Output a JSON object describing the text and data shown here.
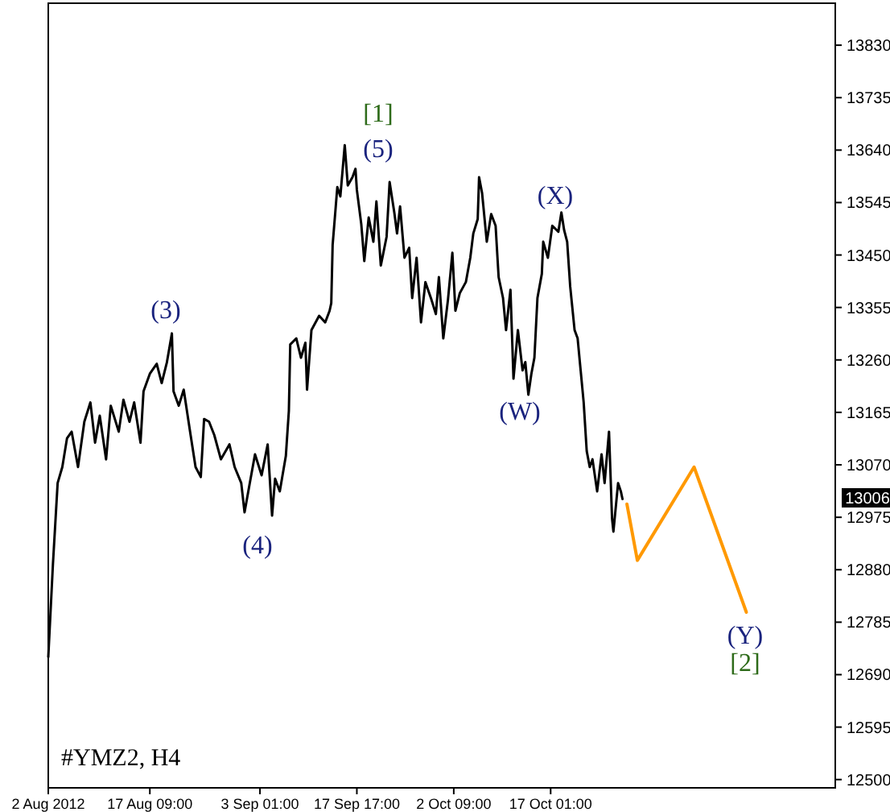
{
  "chart_data": {
    "type": "line",
    "title": "#YMZ2, H4",
    "xlim": [
      "2012-08-02T00:00",
      "2012-11-29T03:00"
    ],
    "ylim": [
      12485,
      13906
    ],
    "xticks": [
      {
        "value": "2012-08-02T00:00",
        "label": "2 Aug 2012"
      },
      {
        "value": "2012-08-17T09:00",
        "label": "17 Aug 09:00"
      },
      {
        "value": "2012-09-03T01:00",
        "label": "3 Sep 01:00"
      },
      {
        "value": "2012-09-17T17:00",
        "label": "17 Sep 17:00"
      },
      {
        "value": "2012-10-02T09:00",
        "label": "2 Oct 09:00"
      },
      {
        "value": "2012-10-17T01:00",
        "label": "17 Oct 01:00"
      }
    ],
    "yticks": [
      12500,
      12595,
      12690,
      12785,
      12880,
      12975,
      13070,
      13165,
      13260,
      13355,
      13450,
      13545,
      13640,
      13735,
      13830
    ],
    "grid": false,
    "series": [
      {
        "color": "#000000",
        "x": [
          "2012-08-02T00:00",
          "2012-08-02T17:00",
          "2012-08-03T10:00",
          "2012-08-04T03:00",
          "2012-08-04T20:00",
          "2012-08-05T13:00",
          "2012-08-06T12:00",
          "2012-08-07T11:00",
          "2012-08-08T09:00",
          "2012-08-09T02:00",
          "2012-08-09T19:00",
          "2012-08-10T18:00",
          "2012-08-11T11:00",
          "2012-08-12T16:00",
          "2012-08-13T09:00",
          "2012-08-14T07:00",
          "2012-08-15T00:00",
          "2012-08-15T23:00",
          "2012-08-16T10:00",
          "2012-08-17T09:00",
          "2012-08-18T10:00",
          "2012-08-19T04:00",
          "2012-08-19T23:00",
          "2012-08-20T17:00",
          "2012-08-20T23:00",
          "2012-08-21T18:00",
          "2012-08-22T12:00",
          "2012-08-23T13:00",
          "2012-08-24T07:00",
          "2012-08-25T02:00",
          "2012-08-25T14:00",
          "2012-08-26T08:00",
          "2012-08-27T03:00",
          "2012-08-28T03:00",
          "2012-08-29T10:00",
          "2012-08-30T05:00",
          "2012-08-31T05:00",
          "2012-08-31T17:00",
          "2012-09-01T12:00",
          "2012-09-02T07:00",
          "2012-09-03T07:00",
          "2012-09-04T05:00",
          "2012-09-04T21:00",
          "2012-09-05T08:00",
          "2012-09-06T01:00",
          "2012-09-06T23:00",
          "2012-09-07T10:00",
          "2012-09-07T15:00",
          "2012-09-08T13:00",
          "2012-09-09T06:00",
          "2012-09-09T22:00",
          "2012-09-10T04:00",
          "2012-09-10T20:00",
          "2012-09-12T00:00",
          "2012-09-12T22:00",
          "2012-09-13T14:00",
          "2012-09-13T20:00",
          "2012-09-14T01:00",
          "2012-09-14T18:00",
          "2012-09-15T05:00",
          "2012-09-15T21:00",
          "2012-09-16T08:00",
          "2012-09-17T01:00",
          "2012-09-17T12:00",
          "2012-09-17T17:00",
          "2012-09-18T09:00",
          "2012-09-18T20:00",
          "2012-09-19T12:00",
          "2012-09-20T05:00",
          "2012-09-20T16:00",
          "2012-09-21T08:00",
          "2012-09-22T05:00",
          "2012-09-22T16:00",
          "2012-09-23T09:00",
          "2012-09-23T19:00",
          "2012-09-24T06:00",
          "2012-09-24T22:00",
          "2012-09-25T15:00",
          "2012-09-26T02:00",
          "2012-09-26T18:00",
          "2012-09-27T10:00",
          "2012-09-28T02:00",
          "2012-09-29T00:00",
          "2012-09-29T16:00",
          "2012-09-30T03:00",
          "2012-09-30T19:00",
          "2012-10-01T12:00",
          "2012-10-02T04:00",
          "2012-10-02T15:00",
          "2012-10-03T07:00",
          "2012-10-04T05:00",
          "2012-10-04T21:00",
          "2012-10-05T08:00",
          "2012-10-06T00:00",
          "2012-10-06T05:00",
          "2012-10-06T16:00",
          "2012-10-07T09:00",
          "2012-10-08T01:00",
          "2012-10-08T17:00",
          "2012-10-09T04:00",
          "2012-10-09T20:00",
          "2012-10-10T07:00",
          "2012-10-10T23:00",
          "2012-10-11T10:00",
          "2012-10-12T02:00",
          "2012-10-12T19:00",
          "2012-10-13T05:00",
          "2012-10-13T16:00",
          "2012-10-14T03:00",
          "2012-10-14T14:00",
          "2012-10-15T01:00",
          "2012-10-15T17:00",
          "2012-10-15T22:00",
          "2012-10-16T15:00",
          "2012-10-17T07:00",
          "2012-10-18T05:00",
          "2012-10-18T16:00",
          "2012-10-19T02:00",
          "2012-10-19T13:00",
          "2012-10-20T00:00",
          "2012-10-20T16:00",
          "2012-10-21T03:00",
          "2012-10-21T14:00",
          "2012-10-22T01:00",
          "2012-10-22T12:00",
          "2012-10-22T23:00",
          "2012-10-23T09:00",
          "2012-10-24T02:00",
          "2012-10-24T18:00",
          "2012-10-25T05:00",
          "2012-10-25T21:00",
          "2012-10-26T08:00",
          "2012-10-26T13:00",
          "2012-10-27T06:00",
          "2012-10-27T16:00",
          "2012-10-27T22:00"
        ],
        "values": [
          12722,
          12891,
          13037,
          13066,
          13118,
          13130,
          13066,
          13148,
          13183,
          13110,
          13159,
          13080,
          13177,
          13130,
          13188,
          13148,
          13183,
          13110,
          13203,
          13235,
          13253,
          13218,
          13256,
          13308,
          13203,
          13177,
          13206,
          13124,
          13066,
          13048,
          13153,
          13148,
          13124,
          13080,
          13107,
          13066,
          13037,
          12984,
          13037,
          13089,
          13051,
          13107,
          12978,
          13045,
          13022,
          13086,
          13168,
          13288,
          13299,
          13264,
          13291,
          13206,
          13314,
          13340,
          13328,
          13349,
          13363,
          13468,
          13573,
          13556,
          13649,
          13576,
          13591,
          13606,
          13568,
          13506,
          13439,
          13518,
          13474,
          13547,
          13431,
          13483,
          13582,
          13527,
          13489,
          13538,
          13445,
          13463,
          13372,
          13445,
          13328,
          13401,
          13369,
          13343,
          13410,
          13299,
          13369,
          13454,
          13349,
          13381,
          13401,
          13445,
          13489,
          13515,
          13591,
          13562,
          13474,
          13524,
          13503,
          13410,
          13372,
          13314,
          13387,
          13226,
          13314,
          13241,
          13256,
          13197,
          13235,
          13264,
          13372,
          13416,
          13474,
          13445,
          13503,
          13492,
          13527,
          13495,
          13474,
          13393,
          13314,
          13299,
          13241,
          13183,
          13095,
          13066,
          13080,
          13022,
          13089,
          13037,
          13130,
          12973,
          12949,
          13037,
          13022,
          13008
        ]
      },
      {
        "color": "#ff9900",
        "x": [
          "2012-10-28T14:00",
          "2012-10-30T04:00",
          "2012-11-07T18:00",
          "2012-11-15T16:00"
        ],
        "values": [
          12999,
          12897,
          13066,
          12803
        ]
      }
    ],
    "annotations": [
      "[1]",
      "(5)",
      "(3)",
      "(4)",
      "(W)",
      "(X)",
      "(Y)",
      "[2]",
      "13006"
    ]
  }
}
